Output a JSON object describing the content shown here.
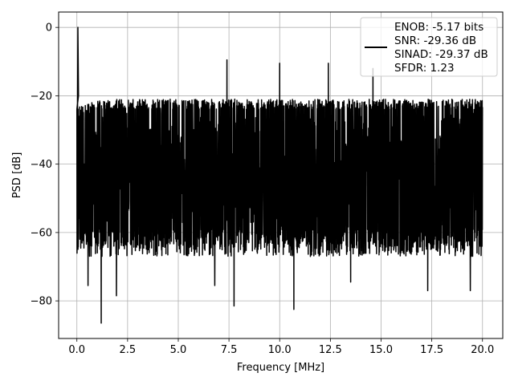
{
  "chart_data": {
    "type": "line",
    "title": "",
    "xlabel": "Frequency [MHz]",
    "ylabel": "PSD [dB]",
    "xlim": [
      -0.9,
      21.0
    ],
    "ylim": [
      -91,
      4.5
    ],
    "xticks": [
      0.0,
      2.5,
      5.0,
      7.5,
      10.0,
      12.5,
      15.0,
      17.5,
      20.0
    ],
    "xtick_labels": [
      "0.0",
      "2.5",
      "5.0",
      "7.5",
      "10.0",
      "12.5",
      "15.0",
      "17.5",
      "20.0"
    ],
    "yticks": [
      0,
      -20,
      -40,
      -60,
      -80
    ],
    "ytick_labels": [
      "0",
      "−20",
      "−40",
      "−60",
      "−80"
    ],
    "grid": true,
    "legend_position": "top-right",
    "series": [
      {
        "name": "ENOB: -5.17 bits\nSNR: -29.36 dB\nSINAD: -29.37 dB\nSFDR: 1.23",
        "color": "#000000",
        "x_range": [
          0.0,
          20.0
        ],
        "approx_upper_envelope_db": -21,
        "approx_lower_envelope_db": -62,
        "peak": {
          "x": 0.05,
          "y": 0.0
        },
        "notable_spurs": [
          {
            "x": 7.4,
            "y": -9.5
          },
          {
            "x": 10.0,
            "y": -10.5
          },
          {
            "x": 12.4,
            "y": -10.5
          },
          {
            "x": 14.6,
            "y": -12.0
          }
        ],
        "notable_nulls": [
          {
            "x": 1.2,
            "y": -86.5
          },
          {
            "x": 7.75,
            "y": -81.5
          },
          {
            "x": 10.7,
            "y": -82.5
          },
          {
            "x": 0.55,
            "y": -75.5
          },
          {
            "x": 1.95,
            "y": -78.5
          },
          {
            "x": 6.8,
            "y": -75.5
          },
          {
            "x": 13.5,
            "y": -74.5
          },
          {
            "x": 17.3,
            "y": -77.0
          },
          {
            "x": 19.4,
            "y": -77.0
          }
        ]
      }
    ],
    "legend_lines": [
      "ENOB: -5.17 bits",
      "SNR: -29.36 dB",
      "SINAD: -29.37 dB",
      "SFDR: 1.23"
    ]
  }
}
